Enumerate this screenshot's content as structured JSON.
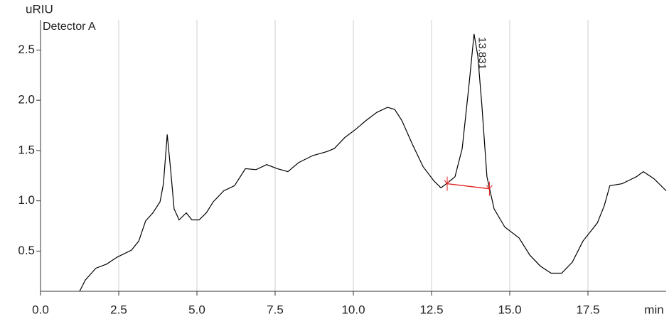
{
  "chart_data": {
    "type": "line",
    "y_label": "uRIU",
    "x_label": "min",
    "detector": "Detector A",
    "peak": {
      "label": "13.831"
    },
    "xlim": [
      0,
      20
    ],
    "ylim": [
      0.1,
      2.8
    ],
    "xticks": [
      {
        "value": 0,
        "label": "0.0"
      },
      2.5,
      {
        "value": 5,
        "label": "5.0"
      },
      7.5,
      {
        "value": 10,
        "label": "10.0"
      },
      12.5,
      {
        "value": 15,
        "label": "15.0"
      },
      17.5
    ],
    "yticks": [
      0.5,
      {
        "value": 1,
        "label": "1.0"
      },
      1.5,
      {
        "value": 2,
        "label": "2.0"
      },
      2.5
    ],
    "grid": true,
    "baseline": {
      "x": [
        13.0,
        14.35
      ],
      "y": [
        1.17,
        1.12
      ],
      "color": "#e02020"
    },
    "series": [
      {
        "color": "#000000",
        "x": [
          1.25,
          1.43,
          1.77,
          2.11,
          2.45,
          2.91,
          3.14,
          3.36,
          3.59,
          3.82,
          3.93,
          4.05,
          4.16,
          4.27,
          4.43,
          4.66,
          4.84,
          5.07,
          5.3,
          5.52,
          5.86,
          6.2,
          6.55,
          6.89,
          7.23,
          7.57,
          7.91,
          8.25,
          8.7,
          9.16,
          9.39,
          9.73,
          10.07,
          10.41,
          10.75,
          11.09,
          11.32,
          11.55,
          11.89,
          12.23,
          12.57,
          12.8,
          13.02,
          13.25,
          13.48,
          13.7,
          13.86,
          13.98,
          14.11,
          14.27,
          14.5,
          14.84,
          15.3,
          15.64,
          15.98,
          16.32,
          16.66,
          17.0,
          17.34,
          17.8,
          18.02,
          18.2,
          18.59,
          19.05,
          19.27,
          19.61,
          20.0
        ],
        "values": [
          0.1,
          0.21,
          0.33,
          0.37,
          0.44,
          0.51,
          0.6,
          0.8,
          0.88,
          0.99,
          1.17,
          1.66,
          1.31,
          0.92,
          0.81,
          0.88,
          0.81,
          0.81,
          0.88,
          0.99,
          1.1,
          1.15,
          1.32,
          1.31,
          1.36,
          1.32,
          1.29,
          1.38,
          1.45,
          1.49,
          1.52,
          1.63,
          1.71,
          1.8,
          1.88,
          1.93,
          1.91,
          1.8,
          1.56,
          1.34,
          1.2,
          1.13,
          1.18,
          1.24,
          1.52,
          2.16,
          2.66,
          2.44,
          1.95,
          1.24,
          0.92,
          0.74,
          0.63,
          0.46,
          0.35,
          0.28,
          0.28,
          0.39,
          0.6,
          0.78,
          0.95,
          1.15,
          1.17,
          1.24,
          1.29,
          1.22,
          1.1
        ]
      }
    ]
  }
}
